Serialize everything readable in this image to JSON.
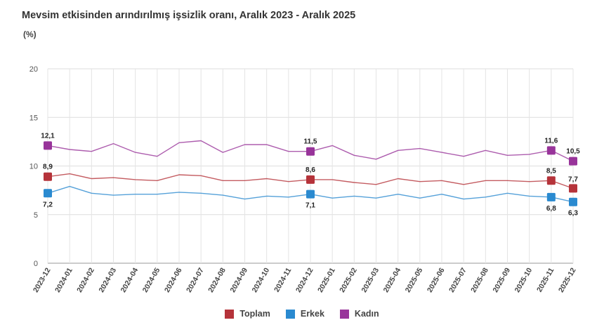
{
  "chart_data": {
    "type": "line",
    "title": "Mevsim etkisinden arındırılmış işsizlik oranı, Aralık 2023 - Aralık 2025",
    "ylabel": "(%)",
    "ylim": [
      0,
      20
    ],
    "yticks": [
      0,
      5,
      10,
      15,
      20
    ],
    "grid": true,
    "legend_position": "bottom",
    "categories": [
      "2023-12",
      "2024-01",
      "2024-02",
      "2024-03",
      "2024-04",
      "2024-05",
      "2024-06",
      "2024-07",
      "2024-08",
      "2024-09",
      "2024-10",
      "2024-11",
      "2024-12",
      "2025-01",
      "2025-02",
      "2025-03",
      "2025-04",
      "2025-05",
      "2025-06",
      "2025-07",
      "2025-08",
      "2025-09",
      "2025-10",
      "2025-11",
      "2025-12"
    ],
    "series": [
      {
        "name": "Toplam",
        "color": "#b5333a",
        "values": [
          8.9,
          9.2,
          8.7,
          8.8,
          8.6,
          8.5,
          9.1,
          9.0,
          8.5,
          8.5,
          8.7,
          8.4,
          8.6,
          8.6,
          8.3,
          8.1,
          8.7,
          8.4,
          8.5,
          8.1,
          8.5,
          8.5,
          8.4,
          8.5,
          7.7
        ],
        "labels": {
          "0": "8,9",
          "12": "8,6",
          "23": "8,5",
          "24": "7,7"
        }
      },
      {
        "name": "Erkek",
        "color": "#2a8ad0",
        "values": [
          7.2,
          7.9,
          7.2,
          7.0,
          7.1,
          7.1,
          7.3,
          7.2,
          7.0,
          6.6,
          6.9,
          6.8,
          7.1,
          6.7,
          6.9,
          6.7,
          7.1,
          6.7,
          7.1,
          6.6,
          6.8,
          7.2,
          6.9,
          6.8,
          6.3
        ],
        "labels": {
          "0": "7,2",
          "12": "7,1",
          "23": "6,8",
          "24": "6,3"
        }
      },
      {
        "name": "Kadın",
        "color": "#98349a",
        "values": [
          12.1,
          11.7,
          11.5,
          12.3,
          11.4,
          11.0,
          12.4,
          12.6,
          11.4,
          12.2,
          12.2,
          11.5,
          11.5,
          12.1,
          11.1,
          10.7,
          11.6,
          11.8,
          11.4,
          11.0,
          11.6,
          11.1,
          11.2,
          11.6,
          10.5
        ],
        "labels": {
          "0": "12,1",
          "12": "11,5",
          "23": "11,6",
          "24": "10,5"
        }
      }
    ],
    "marker_indices": [
      0,
      12,
      23,
      24
    ]
  }
}
